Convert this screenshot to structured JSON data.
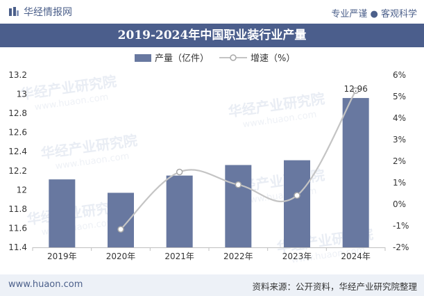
{
  "header": {
    "brand": "华经情报网",
    "tagline": "专业严谨 ● 客观科学"
  },
  "footer": {
    "website": "www.huaon.com",
    "source": "资料来源：公开资料，华经产业研究院整理"
  },
  "watermark": "华经产业研究院",
  "watermark_url": "www.huaon.com",
  "colors": {
    "bar": "#6878a0",
    "line": "#c4c4c4",
    "title_bg": "#4b5e8c",
    "brand": "#4b5f8a"
  },
  "chart_data": {
    "type": "bar",
    "title": "2019-2024年中国职业装行业产量",
    "categories": [
      "2019年",
      "2020年",
      "2021年",
      "2022年",
      "2023年",
      "2024年"
    ],
    "series": [
      {
        "name": "产量（亿件）",
        "type": "bar",
        "axis": "left",
        "values": [
          12.11,
          11.97,
          12.15,
          12.26,
          12.31,
          12.96
        ]
      },
      {
        "name": "增速（%）",
        "type": "line",
        "axis": "right",
        "values": [
          null,
          -1.16,
          1.5,
          0.91,
          0.41,
          5.28
        ]
      }
    ],
    "data_labels": [
      {
        "category": "2024年",
        "series": "产量（亿件）",
        "text": "12.96"
      }
    ],
    "left_axis": {
      "min": 11.4,
      "max": 13.2,
      "ticks": [
        11.4,
        11.6,
        11.8,
        12,
        12.2,
        12.4,
        12.6,
        12.8,
        13,
        13.2
      ],
      "tick_labels": [
        "11.4",
        "11.6",
        "11.8",
        "12",
        "12.2",
        "12.4",
        "12.6",
        "12.8",
        "13",
        "13.2"
      ]
    },
    "right_axis": {
      "min": -2,
      "max": 6,
      "ticks": [
        -2,
        -1,
        0,
        1,
        2,
        3,
        4,
        5,
        6
      ],
      "tick_labels": [
        "-2%",
        "-1%",
        "0%",
        "1%",
        "2%",
        "3%",
        "4%",
        "5%",
        "6%"
      ]
    },
    "legend_position": "top-center",
    "grid": false
  }
}
